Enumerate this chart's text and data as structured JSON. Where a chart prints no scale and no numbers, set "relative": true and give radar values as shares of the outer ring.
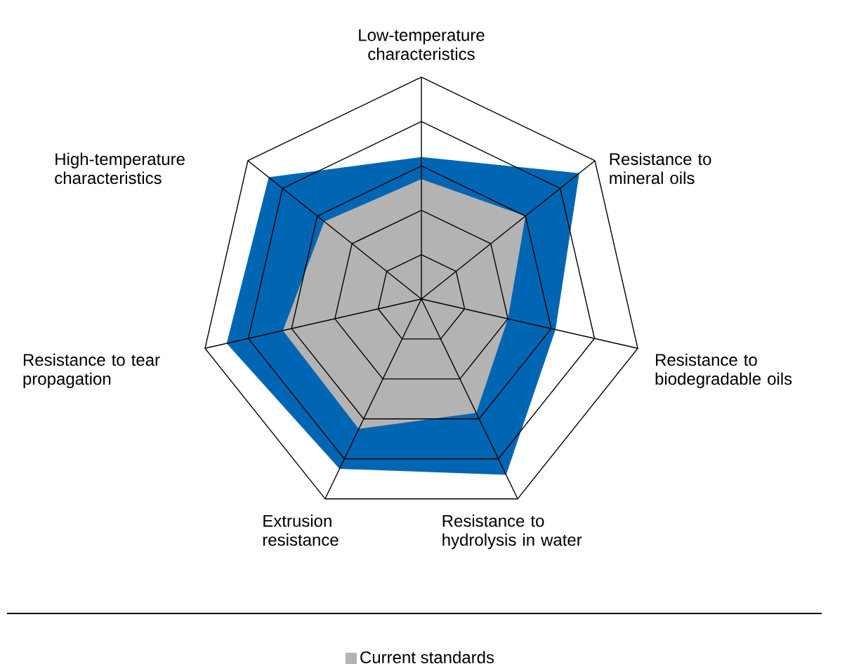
{
  "chart_data": {
    "type": "radar",
    "relative": true,
    "legend": "bottom",
    "categories": [
      "Low-temperature characteristics",
      "Resistance to mineral oils",
      "Resistance to biodegradable oils",
      "Resistance to hydrolysis in water",
      "Extrusion resistance",
      "Resistance to tear propagation",
      "High-temperature characteristics"
    ],
    "series": [
      {
        "color": "#0066b3",
        "values": [
          0.64,
          0.91,
          0.62,
          0.88,
          0.85,
          0.9,
          0.88
        ]
      },
      {
        "name": "Current standards",
        "color": "#b3b3b4",
        "values": [
          0.54,
          0.6,
          0.4,
          0.57,
          0.65,
          0.64,
          0.56
        ]
      }
    ]
  }
}
